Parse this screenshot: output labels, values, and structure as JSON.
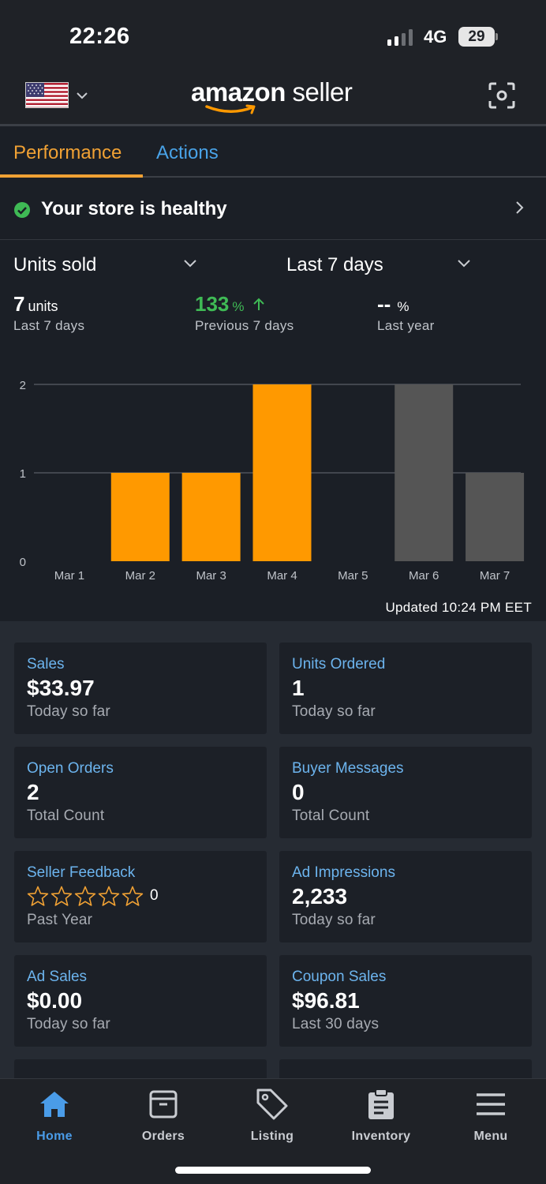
{
  "status_bar": {
    "time": "22:26",
    "network": "4G",
    "battery": "29"
  },
  "header": {
    "brand_bold": "amazon",
    "brand_rest": " seller",
    "flag": "us-flag",
    "scan_icon": "scan-icon"
  },
  "tabs": [
    {
      "label": "Performance",
      "active": true
    },
    {
      "label": "Actions",
      "active": false
    }
  ],
  "health": {
    "label": "Your store is healthy"
  },
  "selectors": {
    "metric": "Units sold",
    "range": "Last 7 days"
  },
  "kpis": {
    "units_value": "7",
    "units_unit": "units",
    "units_label": "Last 7 days",
    "prev_value": "133",
    "prev_pct": "%",
    "prev_label": "Previous 7 days",
    "year_value": "--",
    "year_pct": "%",
    "year_label": "Last year"
  },
  "chart_data": {
    "type": "bar",
    "categories": [
      "Mar 1",
      "Mar 2",
      "Mar 3",
      "Mar 4",
      "Mar 5",
      "Mar 6",
      "Mar 7"
    ],
    "values": [
      0,
      1,
      1,
      2,
      0,
      2,
      1
    ],
    "bar_colors": [
      "#ff9900",
      "#ff9900",
      "#ff9900",
      "#ff9900",
      "#ff9900",
      "#555555",
      "#555555"
    ],
    "ylim": [
      0,
      2
    ],
    "yticks": [
      0,
      1,
      2
    ],
    "grid": true
  },
  "updated": "Updated 10:24 PM EET",
  "cards": [
    {
      "title": "Sales",
      "value": "$33.97",
      "sub": "Today so far"
    },
    {
      "title": "Units Ordered",
      "value": "1",
      "sub": "Today so far"
    },
    {
      "title": "Open Orders",
      "value": "2",
      "sub": "Total Count"
    },
    {
      "title": "Buyer Messages",
      "value": "0",
      "sub": "Total Count"
    },
    {
      "title": "Seller Feedback",
      "stars": 0,
      "star_count": "0",
      "sub": "Past Year"
    },
    {
      "title": "Ad Impressions",
      "value": "2,233",
      "sub": "Today so far"
    },
    {
      "title": "Ad Sales",
      "value": "$0.00",
      "sub": "Today so far"
    },
    {
      "title": "Coupon Sales",
      "value": "$96.81",
      "sub": "Last 30 days"
    }
  ],
  "colors": {
    "accent_orange": "#f0a134",
    "link_blue": "#6cb4ee",
    "nav_active": "#4a9ce8",
    "healthy_green": "#3fba55"
  },
  "bottom_nav": [
    {
      "label": "Home",
      "icon": "home-icon",
      "active": true
    },
    {
      "label": "Orders",
      "icon": "orders-icon",
      "active": false
    },
    {
      "label": "Listing",
      "icon": "tag-icon",
      "active": false
    },
    {
      "label": "Inventory",
      "icon": "clipboard-icon",
      "active": false
    },
    {
      "label": "Menu",
      "icon": "hamburger-menu-icon",
      "active": false
    }
  ]
}
